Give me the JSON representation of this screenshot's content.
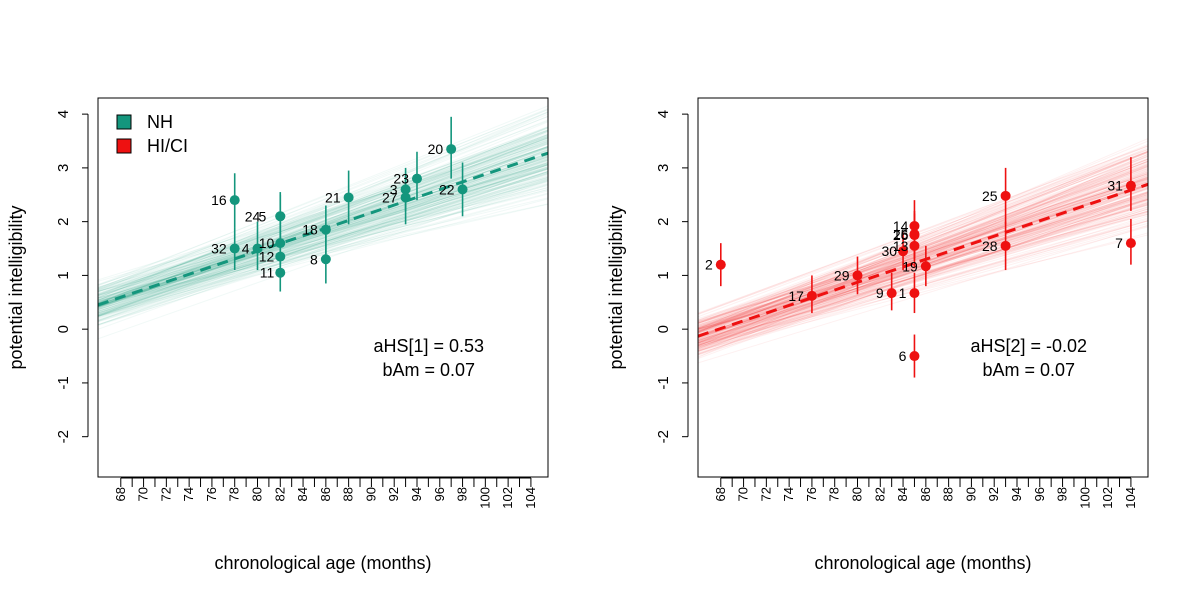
{
  "chart_data": [
    {
      "type": "scatter",
      "panel": "left",
      "xlabel": "chronological age (months)",
      "ylabel": "potential intelligibility",
      "xlim": [
        66,
        105.5
      ],
      "ylim": [
        -2.75,
        4.3
      ],
      "x_ticks": [
        68,
        69,
        70,
        71,
        72,
        73,
        74,
        75,
        76,
        77,
        78,
        79,
        80,
        81,
        82,
        83,
        84,
        85,
        86,
        87,
        88,
        89,
        90,
        91,
        92,
        93,
        94,
        95,
        96,
        97,
        98,
        99,
        100,
        101,
        102,
        103,
        104
      ],
      "x_tick_labels": [
        "68",
        "70",
        "72",
        "74",
        "76",
        "78",
        "80",
        "82",
        "84",
        "86",
        "88",
        "90",
        "92",
        "94",
        "96",
        "98",
        "100",
        "102",
        "104"
      ],
      "y_ticks": [
        -2,
        -1,
        0,
        1,
        2,
        3,
        4
      ],
      "y_tick_labels": [
        "-2",
        "-1",
        "0",
        "1",
        "2",
        "3",
        "4"
      ],
      "color": "#14967d",
      "legend": {
        "position": "top-left",
        "entries": [
          {
            "label": "NH",
            "color": "#14967d"
          },
          {
            "label": "HI/CI",
            "color": "#ee1111"
          }
        ]
      },
      "regression": {
        "intercept_at_66": 0.45,
        "slope": 0.0715
      },
      "annotations": [
        "aHS[1] = 0.53",
        "bAm = 0.07"
      ],
      "points": [
        {
          "id": "16",
          "x": 78,
          "y": 2.4,
          "lo": 1.9,
          "hi": 2.9
        },
        {
          "id": "32",
          "x": 78,
          "y": 1.5,
          "lo": 1.1,
          "hi": 1.9
        },
        {
          "id": "4",
          "x": 80,
          "y": 1.5,
          "lo": 1.1,
          "hi": 2.0
        },
        {
          "id": "24",
          "x": 82,
          "y": 2.1,
          "lo": 1.6,
          "hi": 2.55
        },
        {
          "id": "5",
          "x": 82,
          "y": 2.1,
          "lo": 1.7,
          "hi": 2.5
        },
        {
          "id": "10",
          "x": 82,
          "y": 1.6,
          "lo": 1.2,
          "hi": 2.0
        },
        {
          "id": "12",
          "x": 82,
          "y": 1.35,
          "lo": 0.95,
          "hi": 1.8
        },
        {
          "id": "11",
          "x": 82,
          "y": 1.05,
          "lo": 0.7,
          "hi": 1.4
        },
        {
          "id": "18",
          "x": 86,
          "y": 1.85,
          "lo": 1.4,
          "hi": 2.3
        },
        {
          "id": "8",
          "x": 86,
          "y": 1.3,
          "lo": 0.85,
          "hi": 1.75
        },
        {
          "id": "21",
          "x": 88,
          "y": 2.45,
          "lo": 1.95,
          "hi": 2.95
        },
        {
          "id": "3",
          "x": 93,
          "y": 2.6,
          "lo": 2.2,
          "hi": 3.0
        },
        {
          "id": "27",
          "x": 93,
          "y": 2.45,
          "lo": 1.95,
          "hi": 2.85
        },
        {
          "id": "23",
          "x": 94,
          "y": 2.8,
          "lo": 2.4,
          "hi": 3.3
        },
        {
          "id": "20",
          "x": 97,
          "y": 3.35,
          "lo": 2.8,
          "hi": 3.95
        },
        {
          "id": "22",
          "x": 98,
          "y": 2.6,
          "lo": 2.1,
          "hi": 3.1
        }
      ]
    },
    {
      "type": "scatter",
      "panel": "right",
      "xlabel": "chronological age (months)",
      "ylabel": "potential intelligibility",
      "xlim": [
        66,
        105.5
      ],
      "ylim": [
        -2.75,
        4.3
      ],
      "x_ticks": [
        68,
        69,
        70,
        71,
        72,
        73,
        74,
        75,
        76,
        77,
        78,
        79,
        80,
        81,
        82,
        83,
        84,
        85,
        86,
        87,
        88,
        89,
        90,
        91,
        92,
        93,
        94,
        95,
        96,
        97,
        98,
        99,
        100,
        101,
        102,
        103,
        104
      ],
      "x_tick_labels": [
        "68",
        "70",
        "72",
        "74",
        "76",
        "78",
        "80",
        "82",
        "84",
        "86",
        "88",
        "90",
        "92",
        "94",
        "96",
        "98",
        "100",
        "102",
        "104"
      ],
      "y_ticks": [
        -2,
        -1,
        0,
        1,
        2,
        3,
        4
      ],
      "y_tick_labels": [
        "-2",
        "-1",
        "0",
        "1",
        "2",
        "3",
        "4"
      ],
      "color": "#ee1111",
      "regression": {
        "intercept_at_66": -0.13,
        "slope": 0.0715
      },
      "annotations": [
        "aHS[2] = -0.02",
        "bAm = 0.07"
      ],
      "points": [
        {
          "id": "2",
          "x": 68,
          "y": 1.2,
          "lo": 0.8,
          "hi": 1.6
        },
        {
          "id": "17",
          "x": 76,
          "y": 0.62,
          "lo": 0.3,
          "hi": 1.0
        },
        {
          "id": "29",
          "x": 80,
          "y": 1.0,
          "lo": 0.65,
          "hi": 1.35
        },
        {
          "id": "9",
          "x": 83,
          "y": 0.67,
          "lo": 0.35,
          "hi": 1.05
        },
        {
          "id": "1",
          "x": 85,
          "y": 0.67,
          "lo": 0.3,
          "hi": 1.05
        },
        {
          "id": "14",
          "x": 85,
          "y": 1.92,
          "lo": 1.5,
          "hi": 2.4
        },
        {
          "id": "26",
          "x": 85,
          "y": 1.75,
          "lo": 1.3,
          "hi": 2.2
        },
        {
          "id": "15",
          "x": 85,
          "y": 1.77,
          "lo": 1.35,
          "hi": 2.15
        },
        {
          "id": "13",
          "x": 85,
          "y": 1.55,
          "lo": 1.15,
          "hi": 1.95
        },
        {
          "id": "30",
          "x": 84,
          "y": 1.45,
          "lo": 1.1,
          "hi": 1.8
        },
        {
          "id": "19",
          "x": 86,
          "y": 1.17,
          "lo": 0.8,
          "hi": 1.55
        },
        {
          "id": "6",
          "x": 85,
          "y": -0.5,
          "lo": -0.9,
          "hi": -0.1
        },
        {
          "id": "25",
          "x": 93,
          "y": 2.48,
          "lo": 1.95,
          "hi": 3.0
        },
        {
          "id": "28",
          "x": 93,
          "y": 1.55,
          "lo": 1.1,
          "hi": 2.0
        },
        {
          "id": "31",
          "x": 104,
          "y": 2.67,
          "lo": 2.2,
          "hi": 3.2
        },
        {
          "id": "7",
          "x": 104,
          "y": 1.6,
          "lo": 1.2,
          "hi": 2.05
        }
      ]
    }
  ]
}
